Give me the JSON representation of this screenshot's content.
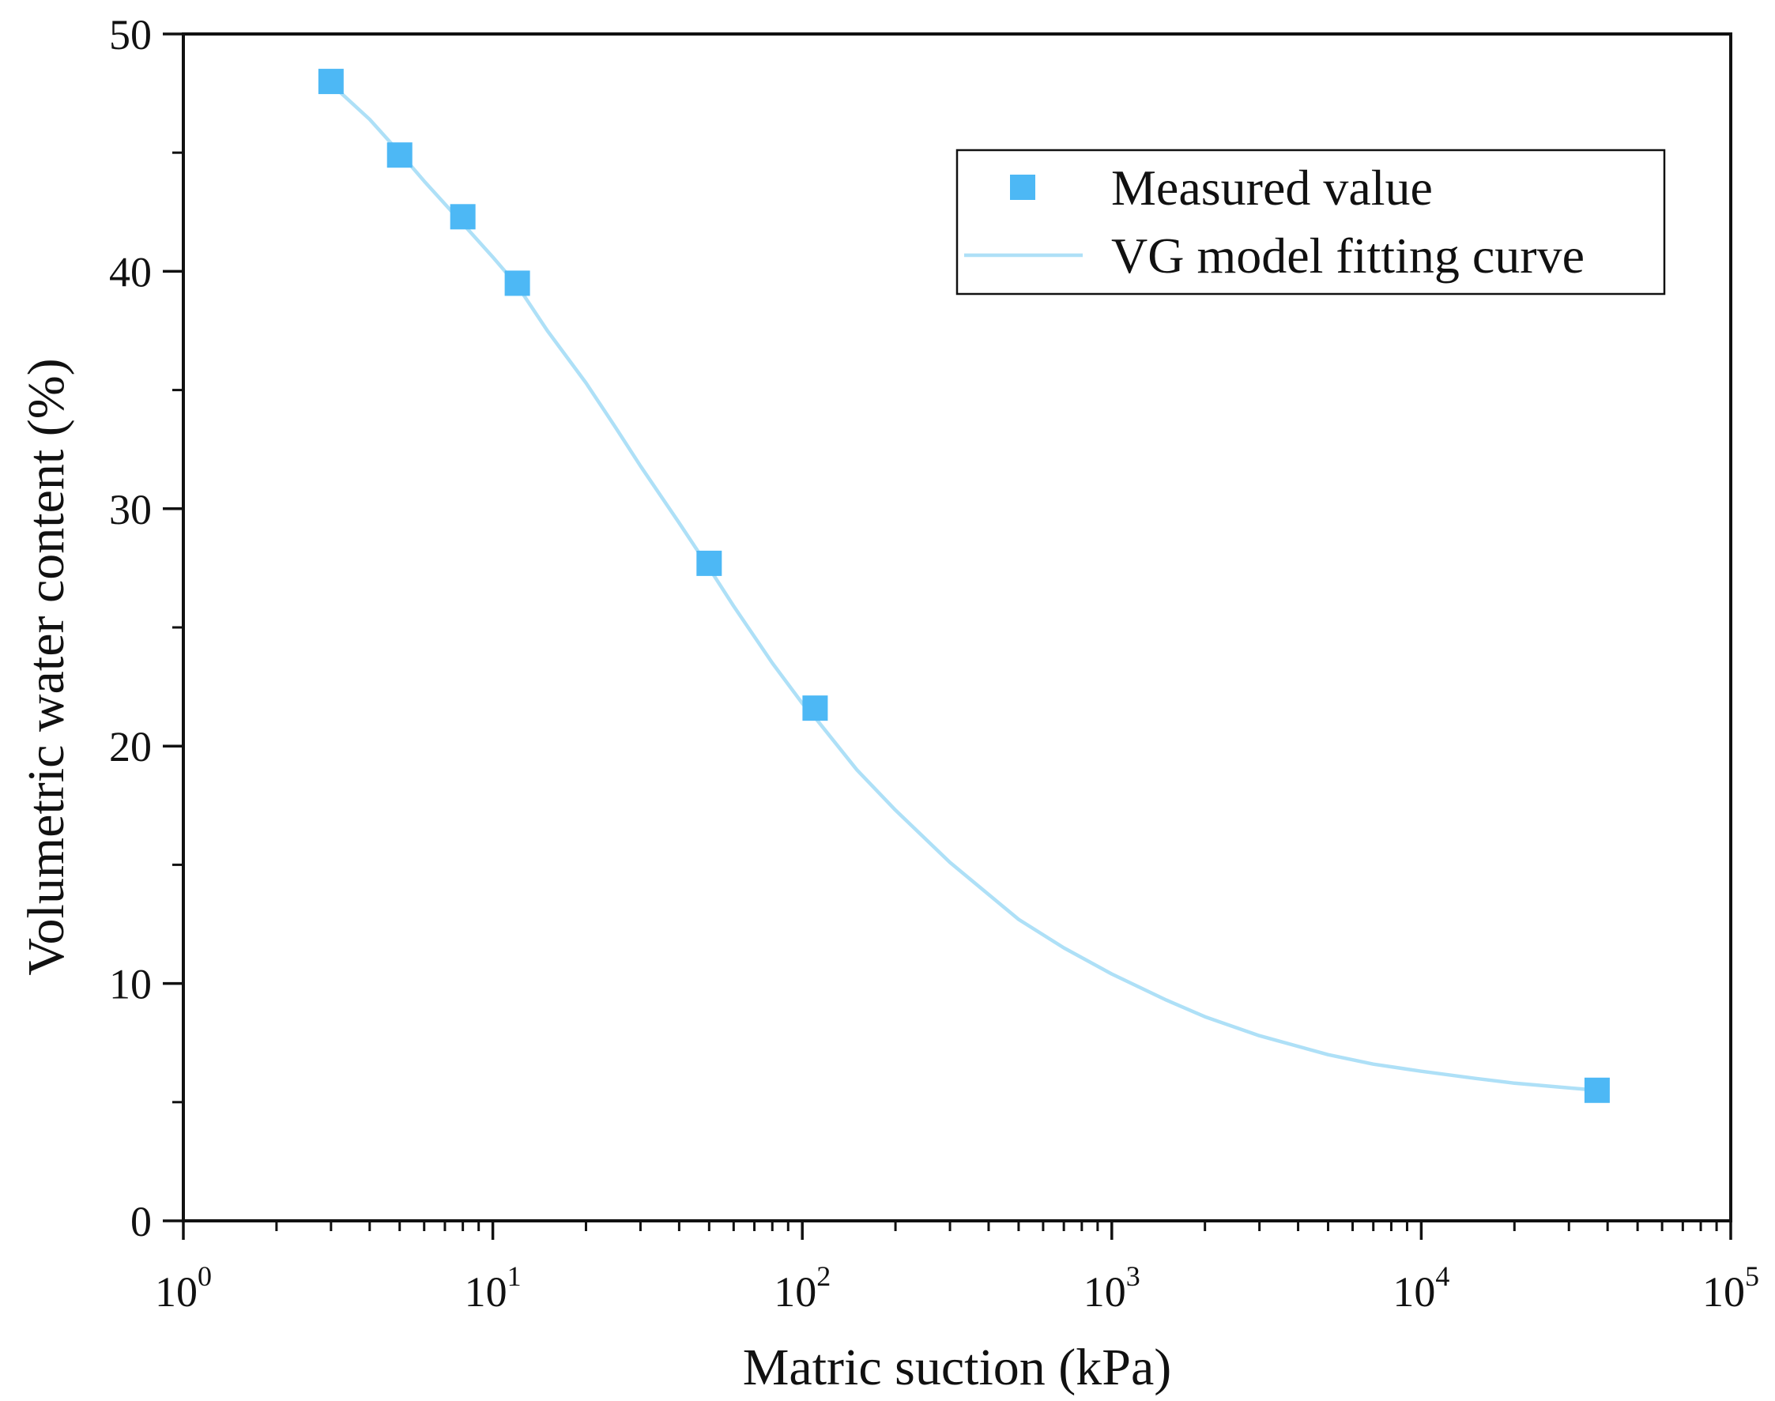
{
  "chart_data": {
    "type": "scatter",
    "xscale": "log",
    "xlim": [
      1,
      100000
    ],
    "ylim": [
      0,
      50
    ],
    "xlabel": "Matric suction (kPa)",
    "ylabel": "Volumetric water content (%)",
    "x_ticks": [
      {
        "base": "10",
        "exp": "0",
        "value": 1
      },
      {
        "base": "10",
        "exp": "1",
        "value": 10
      },
      {
        "base": "10",
        "exp": "2",
        "value": 100
      },
      {
        "base": "10",
        "exp": "3",
        "value": 1000
      },
      {
        "base": "10",
        "exp": "4",
        "value": 10000
      },
      {
        "base": "10",
        "exp": "5",
        "value": 100000
      }
    ],
    "y_ticks": [
      "0",
      "10",
      "20",
      "30",
      "40",
      "50"
    ],
    "legend_position": "top-right",
    "colors": {
      "marker": "#4db8f5",
      "curve": "#aee0f7"
    },
    "series": [
      {
        "name": "Measured value",
        "kind": "marker",
        "x": [
          3,
          5,
          8,
          12,
          50,
          110,
          37000
        ],
        "y": [
          48.0,
          44.9,
          42.3,
          39.5,
          27.7,
          21.6,
          5.5
        ]
      },
      {
        "name": "VG model fitting curve",
        "kind": "line",
        "x": [
          3,
          4,
          5,
          6,
          8,
          10,
          12,
          15,
          20,
          25,
          30,
          40,
          50,
          60,
          80,
          100,
          110,
          150,
          200,
          300,
          500,
          700,
          1000,
          1500,
          2000,
          3000,
          5000,
          7000,
          10000,
          15000,
          20000,
          30000,
          37000
        ],
        "y": [
          47.9,
          46.4,
          45.0,
          43.8,
          42.0,
          40.6,
          39.4,
          37.5,
          35.3,
          33.4,
          31.8,
          29.4,
          27.5,
          25.9,
          23.5,
          21.8,
          21.2,
          19.0,
          17.3,
          15.1,
          12.7,
          11.5,
          10.4,
          9.3,
          8.6,
          7.8,
          7.0,
          6.6,
          6.3,
          6.0,
          5.8,
          5.6,
          5.5
        ]
      }
    ]
  }
}
